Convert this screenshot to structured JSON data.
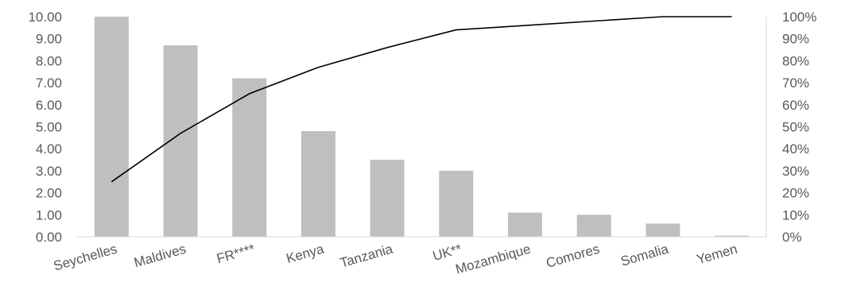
{
  "chart_data": {
    "type": "bar",
    "categories": [
      "Seychelles",
      "Maldives",
      "FR****",
      "Kenya",
      "Tanzania",
      "UK**",
      "Mozambique",
      "Comores",
      "Somalia",
      "Yemen"
    ],
    "series": [
      {
        "type": "bar",
        "values": [
          10.0,
          8.7,
          7.2,
          4.8,
          3.5,
          3.0,
          1.1,
          1.0,
          0.6,
          0.05
        ]
      },
      {
        "type": "line",
        "axis": "right",
        "values": [
          25,
          47,
          65,
          77,
          86,
          94,
          96,
          98,
          100,
          100
        ]
      }
    ],
    "y_left": {
      "min": 0,
      "max": 10,
      "ticks": [
        "0.00",
        "1.00",
        "2.00",
        "3.00",
        "4.00",
        "5.00",
        "6.00",
        "7.00",
        "8.00",
        "9.00",
        "10.00"
      ]
    },
    "y_right": {
      "min": 0,
      "max": 100,
      "ticks": [
        "0%",
        "10%",
        "20%",
        "30%",
        "40%",
        "50%",
        "60%",
        "70%",
        "80%",
        "90%",
        "100%"
      ]
    },
    "title": "",
    "xlabel": "",
    "ylabel": "",
    "grid": false,
    "legend": "none",
    "colors": {
      "bar": "#bfbfbf",
      "line": "#000000",
      "text": "#595959",
      "axis": "#d9d9d9"
    }
  }
}
